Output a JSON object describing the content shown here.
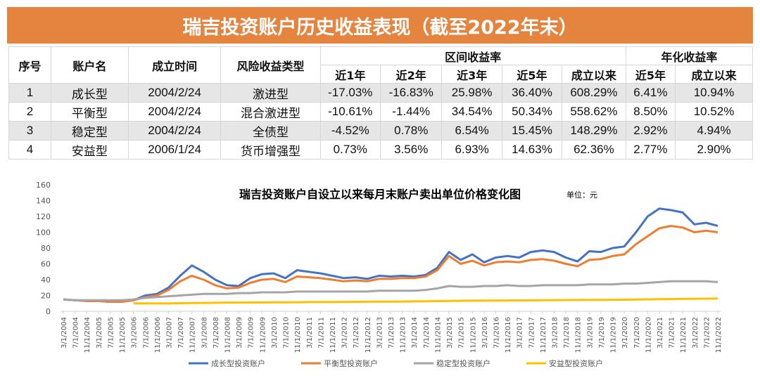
{
  "banner_title": "瑞吉投资账户历史收益表现（截至2022年末）",
  "table": {
    "headers": {
      "no": "序号",
      "name": "账户名",
      "date": "成立时间",
      "risk": "风险收益类型",
      "interval": "区间收益率",
      "annual": "年化收益率",
      "sub": [
        "近1年",
        "近2年",
        "近3年",
        "近5年",
        "成立以来",
        "近5年",
        "成立以来"
      ]
    },
    "rows": [
      [
        "1",
        "成长型",
        "2004/2/24",
        "激进型",
        "-17.03%",
        "-16.83%",
        "25.98%",
        "36.40%",
        "608.29%",
        "6.41%",
        "10.94%"
      ],
      [
        "2",
        "平衡型",
        "2004/2/24",
        "混合激进型",
        "-10.61%",
        "-1.44%",
        "34.54%",
        "50.34%",
        "558.62%",
        "8.50%",
        "10.52%"
      ],
      [
        "3",
        "稳定型",
        "2004/2/24",
        "全债型",
        "-4.52%",
        "0.78%",
        "6.54%",
        "15.45%",
        "148.29%",
        "2.92%",
        "4.94%"
      ],
      [
        "4",
        "安益型",
        "2006/1/24",
        "货币增强型",
        "0.73%",
        "3.56%",
        "6.93%",
        "14.63%",
        "62.36%",
        "2.77%",
        "2.90%"
      ]
    ]
  },
  "chart_data": {
    "type": "line",
    "title": "瑞吉投资账户自设立以来每月末账户卖出单位价格变化图",
    "unit": "单位：元",
    "ylim": [
      0,
      160
    ],
    "yticks": [
      0,
      20,
      40,
      60,
      80,
      100,
      120,
      140,
      160
    ],
    "grid": false,
    "legend_placement": "bottom",
    "x": [
      "3/1/2004",
      "7/1/2004",
      "11/1/2004",
      "3/1/2005",
      "7/1/2005",
      "11/1/2005",
      "3/1/2006",
      "7/1/2006",
      "11/1/2006",
      "3/1/2007",
      "7/1/2007",
      "11/1/2007",
      "3/1/2008",
      "7/1/2008",
      "11/1/2008",
      "3/1/2009",
      "7/1/2009",
      "11/1/2009",
      "3/1/2010",
      "7/1/2010",
      "11/1/2010",
      "3/1/2011",
      "7/1/2011",
      "11/1/2011",
      "3/1/2012",
      "7/1/2012",
      "11/1/2012",
      "3/1/2013",
      "7/1/2013",
      "11/1/2013",
      "3/1/2014",
      "7/1/2014",
      "11/1/2014",
      "3/1/2015",
      "7/1/2015",
      "11/1/2015",
      "3/1/2016",
      "7/1/2016",
      "11/1/2016",
      "3/1/2017",
      "7/1/2017",
      "11/1/2017",
      "3/1/2018",
      "7/1/2018",
      "11/1/2018",
      "3/1/2019",
      "7/1/2019",
      "11/1/2019",
      "3/1/2020",
      "7/1/2020",
      "11/1/2020",
      "3/1/2021",
      "7/1/2021",
      "11/1/2021",
      "3/1/2022",
      "7/1/2022",
      "11/1/2022"
    ],
    "series": [
      {
        "name": "成长型投资账户",
        "color": "#4472C4",
        "values": [
          15,
          14,
          13,
          13,
          12,
          12,
          14,
          20,
          22,
          30,
          45,
          58,
          50,
          40,
          33,
          32,
          42,
          47,
          48,
          42,
          52,
          50,
          48,
          45,
          42,
          43,
          41,
          45,
          44,
          45,
          44,
          46,
          55,
          75,
          65,
          72,
          62,
          68,
          70,
          68,
          75,
          77,
          75,
          68,
          63,
          76,
          75,
          80,
          82,
          100,
          120,
          130,
          128,
          125,
          110,
          112,
          108
        ]
      },
      {
        "name": "平衡型投资账户",
        "color": "#ED7D31",
        "values": [
          15,
          14,
          13,
          13,
          12,
          12,
          14,
          18,
          20,
          27,
          38,
          45,
          40,
          33,
          29,
          30,
          36,
          40,
          41,
          37,
          44,
          43,
          42,
          40,
          38,
          39,
          38,
          41,
          41,
          42,
          42,
          44,
          52,
          70,
          60,
          64,
          58,
          62,
          63,
          62,
          65,
          66,
          64,
          60,
          57,
          65,
          66,
          70,
          72,
          85,
          95,
          105,
          108,
          106,
          100,
          102,
          100
        ]
      },
      {
        "name": "稳定型投资账户",
        "color": "#A5A5A5",
        "values": [
          15,
          14,
          14,
          14,
          14,
          14,
          15,
          17,
          18,
          19,
          20,
          21,
          22,
          22,
          22,
          23,
          23,
          24,
          24,
          24,
          25,
          25,
          25,
          25,
          25,
          25,
          25,
          26,
          26,
          26,
          26,
          27,
          29,
          32,
          31,
          31,
          32,
          32,
          33,
          32,
          32,
          33,
          33,
          33,
          33,
          34,
          34,
          34,
          35,
          35,
          36,
          37,
          38,
          38,
          38,
          38,
          37
        ]
      },
      {
        "name": "安益型投资账户",
        "color": "#FFC000",
        "values": [
          null,
          null,
          null,
          null,
          null,
          null,
          10,
          10,
          10,
          10,
          10.2,
          10.4,
          10.6,
          10.8,
          11,
          11,
          11.1,
          11.2,
          11.3,
          11.4,
          11.5,
          11.6,
          11.7,
          11.8,
          11.9,
          12,
          12.1,
          12.2,
          12.3,
          12.4,
          12.5,
          12.7,
          12.9,
          13.1,
          13.3,
          13.4,
          13.5,
          13.6,
          13.7,
          13.8,
          13.9,
          14,
          14.1,
          14.2,
          14.3,
          14.4,
          14.5,
          14.6,
          14.7,
          14.9,
          15.1,
          15.3,
          15.5,
          15.7,
          15.9,
          16,
          16.2
        ]
      }
    ]
  }
}
